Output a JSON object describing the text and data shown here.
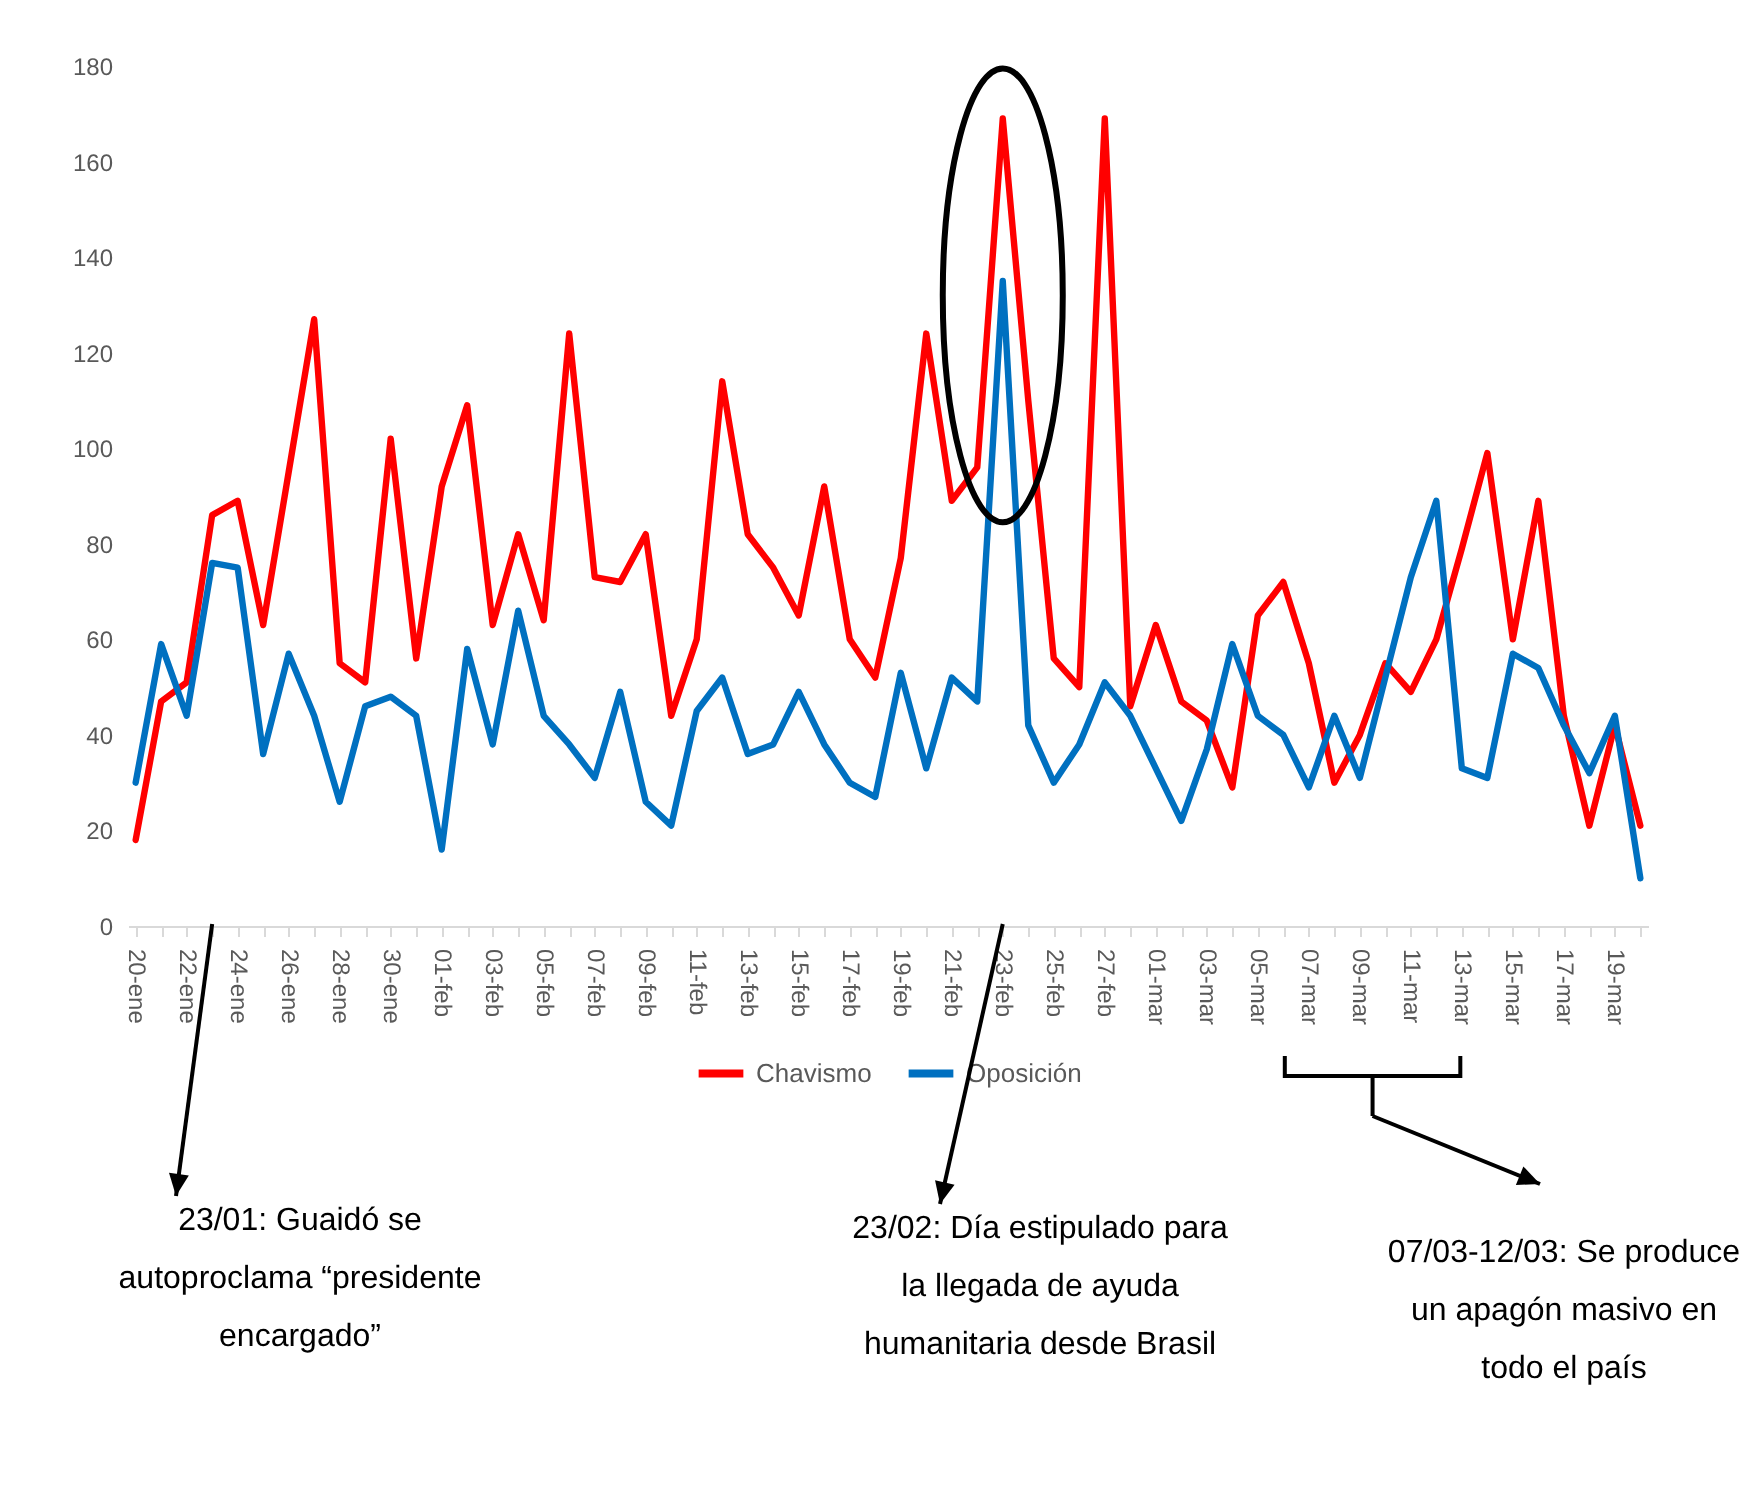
{
  "chart_data": {
    "type": "line",
    "categories": [
      "20-ene",
      null,
      "22-ene",
      null,
      "24-ene",
      null,
      "26-ene",
      null,
      "28-ene",
      null,
      "30-ene",
      null,
      "01-feb",
      null,
      "03-feb",
      null,
      "05-feb",
      null,
      "07-feb",
      null,
      "09-feb",
      null,
      "11-feb",
      null,
      "13-feb",
      null,
      "15-feb",
      null,
      "17-feb",
      null,
      "19-feb",
      null,
      "21-feb",
      null,
      "23-feb",
      null,
      "25-feb",
      null,
      "27-feb",
      null,
      "01-mar",
      null,
      "03-mar",
      null,
      "05-mar",
      null,
      "07-mar",
      null,
      "09-mar",
      null,
      "11-mar",
      null,
      "13-mar",
      null,
      "15-mar",
      null,
      "17-mar",
      null,
      "19-mar",
      null
    ],
    "series": [
      {
        "name": "Chavismo",
        "color": "#ff0000",
        "values": [
          18,
          47,
          51,
          86,
          89,
          63,
          95,
          127,
          55,
          51,
          102,
          56,
          92,
          109,
          63,
          82,
          64,
          124,
          73,
          72,
          82,
          44,
          60,
          114,
          82,
          75,
          65,
          92,
          60,
          52,
          77,
          124,
          89,
          96,
          169,
          110,
          56,
          50,
          169,
          46,
          63,
          47,
          43,
          29,
          65,
          72,
          55,
          30,
          40,
          55,
          49,
          60,
          79,
          99,
          60,
          89,
          44,
          21,
          42,
          21
        ]
      },
      {
        "name": "Oposición",
        "color": "#0070c0",
        "values": [
          30,
          59,
          44,
          76,
          75,
          36,
          57,
          44,
          26,
          46,
          48,
          44,
          16,
          58,
          38,
          66,
          44,
          38,
          31,
          49,
          26,
          21,
          45,
          52,
          36,
          38,
          49,
          38,
          30,
          27,
          53,
          33,
          52,
          47,
          135,
          42,
          30,
          38,
          51,
          44,
          33,
          22,
          37,
          59,
          44,
          40,
          29,
          44,
          31,
          52,
          73,
          89,
          33,
          31,
          57,
          54,
          42,
          32,
          44,
          10
        ]
      }
    ],
    "ylim": [
      0,
      180
    ],
    "yticks": [
      0,
      20,
      40,
      60,
      80,
      100,
      120,
      140,
      160,
      180
    ],
    "legend": "bottom",
    "annotations": [
      "23/01: Guaidó se autoproclama “presidente encargado”",
      "23/02: Día estipulado para la llegada de ayuda humanitaria desde Brasil",
      "07/03-12/03: Se produce un apagón masivo en todo el país"
    ]
  }
}
